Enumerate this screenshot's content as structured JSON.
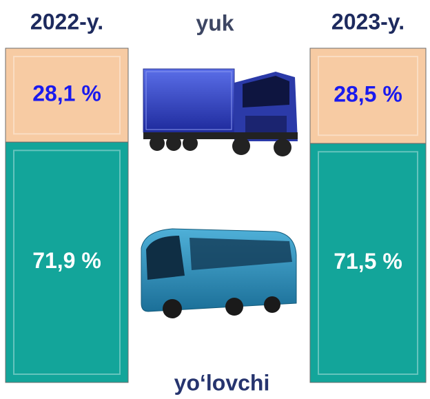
{
  "chart_data": {
    "type": "stacked_bar",
    "categories": [
      "2022-y.",
      "2023-y."
    ],
    "series": [
      {
        "name": "yuk",
        "color": "#f7cba3",
        "values": [
          28.1,
          28.5
        ],
        "value_labels": [
          "28,1 %",
          "28,5 %"
        ],
        "label_color": "#1a1aee"
      },
      {
        "name": "yo‘lovchi",
        "color": "#13a59a",
        "values": [
          71.9,
          71.5
        ],
        "value_labels": [
          "71,9 %",
          "71,5 %"
        ],
        "label_color": "#ffffff"
      }
    ]
  }
}
